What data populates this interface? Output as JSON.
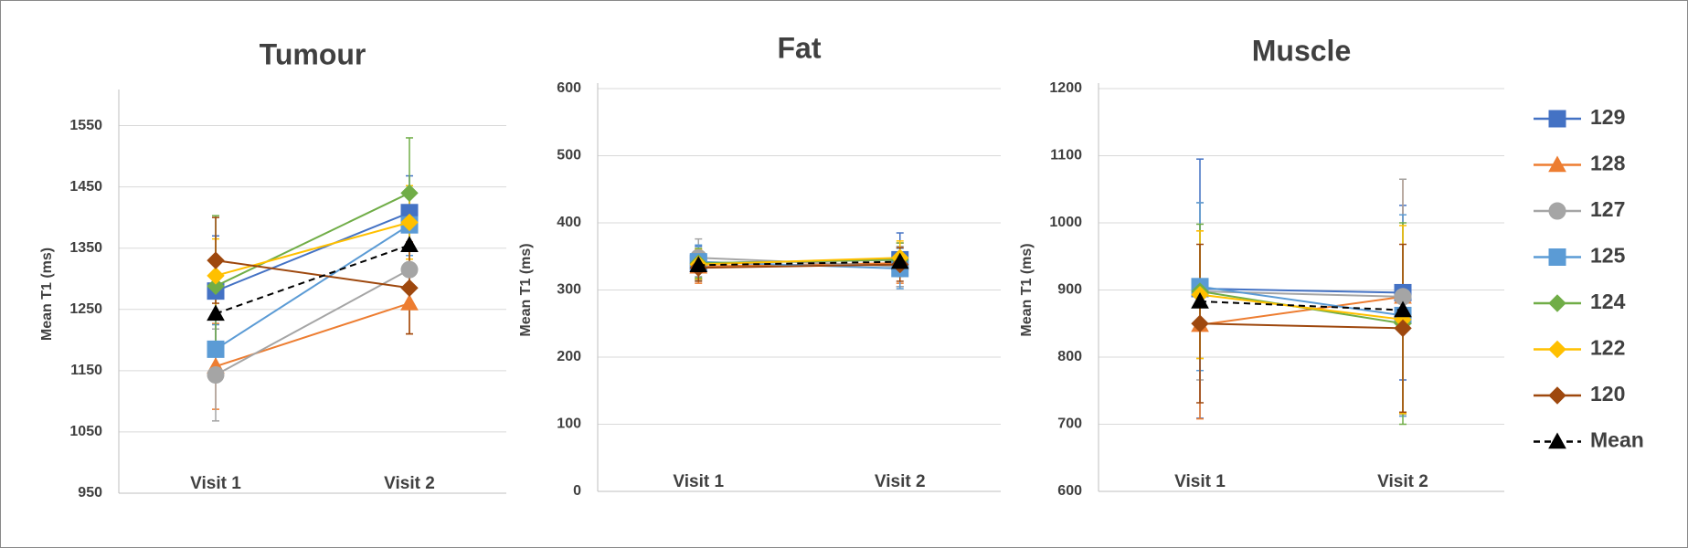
{
  "legend": [
    {
      "name": "129",
      "color": "#4472c4",
      "marker": "square",
      "dash": false
    },
    {
      "name": "128",
      "color": "#ed7d31",
      "marker": "triangle",
      "dash": false
    },
    {
      "name": "127",
      "color": "#a5a5a5",
      "marker": "circle",
      "dash": false
    },
    {
      "name": "125",
      "color": "#5b9bd5",
      "marker": "square",
      "dash": false
    },
    {
      "name": "124",
      "color": "#70ad47",
      "marker": "diamond",
      "dash": false
    },
    {
      "name": "122",
      "color": "#ffc000",
      "marker": "diamond",
      "dash": false
    },
    {
      "name": "120",
      "color": "#9e480e",
      "marker": "diamond",
      "dash": false
    },
    {
      "name": "Mean",
      "color": "#000000",
      "marker": "triangle",
      "dash": true
    }
  ],
  "chart_data": [
    {
      "type": "line",
      "title": "Tumour",
      "ylabel": "Mean T1 (ms)",
      "categories": [
        "Visit 1",
        "Visit 2"
      ],
      "ylim": [
        950,
        1600
      ],
      "yticks": [
        950,
        1050,
        1150,
        1250,
        1350,
        1450,
        1550
      ],
      "grid": true,
      "series": [
        {
          "values": [
            1280,
            1408
          ],
          "errors": [
            90,
            60
          ]
        },
        {
          "values": [
            1157,
            1260
          ],
          "errors": [
            70,
            50
          ]
        },
        {
          "values": [
            1143,
            1315
          ],
          "errors": [
            75,
            65
          ]
        },
        {
          "values": [
            1185,
            1388
          ],
          "errors": [
            40,
            50
          ]
        },
        {
          "values": [
            1288,
            1440
          ],
          "errors": [
            115,
            90
          ]
        },
        {
          "values": [
            1305,
            1392
          ],
          "errors": [
            60,
            60
          ]
        },
        {
          "values": [
            1330,
            1285
          ],
          "errors": [
            70,
            75
          ]
        },
        {
          "values": [
            1243,
            1355
          ]
        }
      ]
    },
    {
      "type": "line",
      "title": "Fat",
      "ylabel": "Mean T1 (ms)",
      "categories": [
        "Visit 1",
        "Visit 2"
      ],
      "ylim": [
        0,
        600
      ],
      "yticks": [
        0,
        100,
        200,
        300,
        400,
        500,
        600
      ],
      "grid": true,
      "series": [
        {
          "values": [
            340,
            345
          ],
          "errors": [
            25,
            40
          ]
        },
        {
          "values": [
            335,
            340
          ],
          "errors": [
            25,
            30
          ]
        },
        {
          "values": [
            348,
            335
          ],
          "errors": [
            28,
            30
          ]
        },
        {
          "values": [
            342,
            332
          ],
          "errors": [
            25,
            30
          ]
        },
        {
          "values": [
            340,
            345
          ],
          "errors": [
            22,
            25
          ]
        },
        {
          "values": [
            338,
            348
          ],
          "errors": [
            22,
            25
          ]
        },
        {
          "values": [
            333,
            338
          ],
          "errors": [
            20,
            25
          ]
        },
        {
          "values": [
            337,
            342
          ]
        }
      ]
    },
    {
      "type": "line",
      "title": "Muscle",
      "ylabel": "Mean T1 (ms)",
      "categories": [
        "Visit 1",
        "Visit 2"
      ],
      "ylim": [
        600,
        1200
      ],
      "yticks": [
        600,
        700,
        800,
        900,
        1000,
        1100,
        1200
      ],
      "grid": true,
      "series": [
        {
          "values": [
            902,
            896
          ],
          "errors": [
            193,
            130
          ]
        },
        {
          "values": [
            848,
            890
          ],
          "errors": [
            140,
            175
          ]
        },
        {
          "values": [
            898,
            890
          ],
          "errors": [
            132,
            175
          ]
        },
        {
          "values": [
            905,
            862
          ],
          "errors": [
            125,
            150
          ]
        },
        {
          "values": [
            898,
            850
          ],
          "errors": [
            100,
            150
          ]
        },
        {
          "values": [
            893,
            856
          ],
          "errors": [
            95,
            140
          ]
        },
        {
          "values": [
            850,
            843
          ],
          "errors": [
            118,
            125
          ]
        },
        {
          "values": [
            883,
            870
          ]
        }
      ]
    }
  ]
}
